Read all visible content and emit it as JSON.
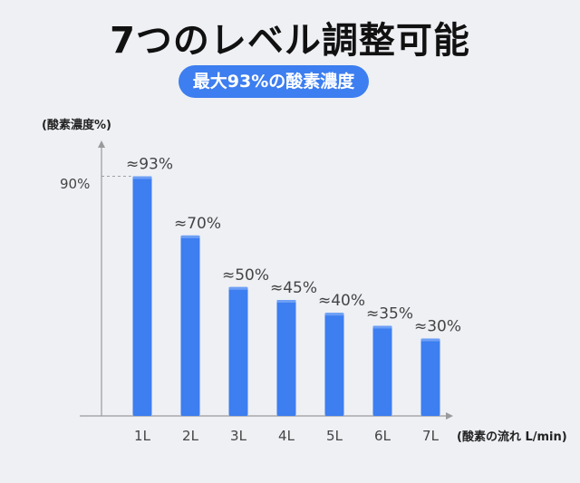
{
  "header": {
    "title": "7つのレベル調整可能",
    "subtitle": "最大93%の酸素濃度"
  },
  "chart_data": {
    "type": "bar",
    "ylabel": "(酸素濃度%)",
    "xlabel": "(酸素の流れ L/min)",
    "categories": [
      "1L",
      "2L",
      "3L",
      "4L",
      "5L",
      "6L",
      "7L"
    ],
    "values": [
      93,
      70,
      50,
      45,
      40,
      35,
      30
    ],
    "data_labels": [
      "≈93%",
      "≈70%",
      "≈50%",
      "≈45%",
      "≈40%",
      "≈35%",
      "≈30%"
    ],
    "yticks": [
      {
        "value": 90,
        "label": "90%"
      }
    ],
    "ylim": [
      0,
      100
    ],
    "bar_color": "#3d7ef0",
    "grid": false
  }
}
